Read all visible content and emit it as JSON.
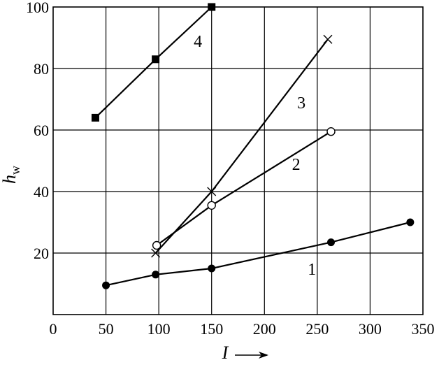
{
  "chart_data": {
    "type": "line",
    "xlabel": "I",
    "ylabel_main": "h",
    "ylabel_sub": "w",
    "xlim": [
      0,
      350
    ],
    "ylim": [
      0,
      100
    ],
    "xticks": [
      0,
      50,
      100,
      150,
      200,
      250,
      300,
      350
    ],
    "yticks": [
      20,
      40,
      60,
      80,
      100
    ],
    "grid": true,
    "series": [
      {
        "name": "1",
        "marker": "filled-circle",
        "label_at": [
          245,
          13
        ],
        "points": [
          [
            50,
            9.5
          ],
          [
            97,
            13
          ],
          [
            150,
            15
          ],
          [
            263,
            23.5
          ],
          [
            338,
            30
          ]
        ]
      },
      {
        "name": "2",
        "marker": "open-circle",
        "label_at": [
          230,
          47
        ],
        "points": [
          [
            98,
            22.5
          ],
          [
            150,
            35.5
          ],
          [
            263,
            59.5
          ]
        ]
      },
      {
        "name": "3",
        "marker": "cross",
        "label_at": [
          235,
          67
        ],
        "points": [
          [
            97,
            20
          ],
          [
            150,
            40
          ],
          [
            260,
            89.5
          ]
        ]
      },
      {
        "name": "4",
        "marker": "filled-square",
        "label_at": [
          137,
          87
        ],
        "points": [
          [
            40,
            64
          ],
          [
            97,
            83
          ],
          [
            150,
            100
          ]
        ]
      }
    ]
  }
}
